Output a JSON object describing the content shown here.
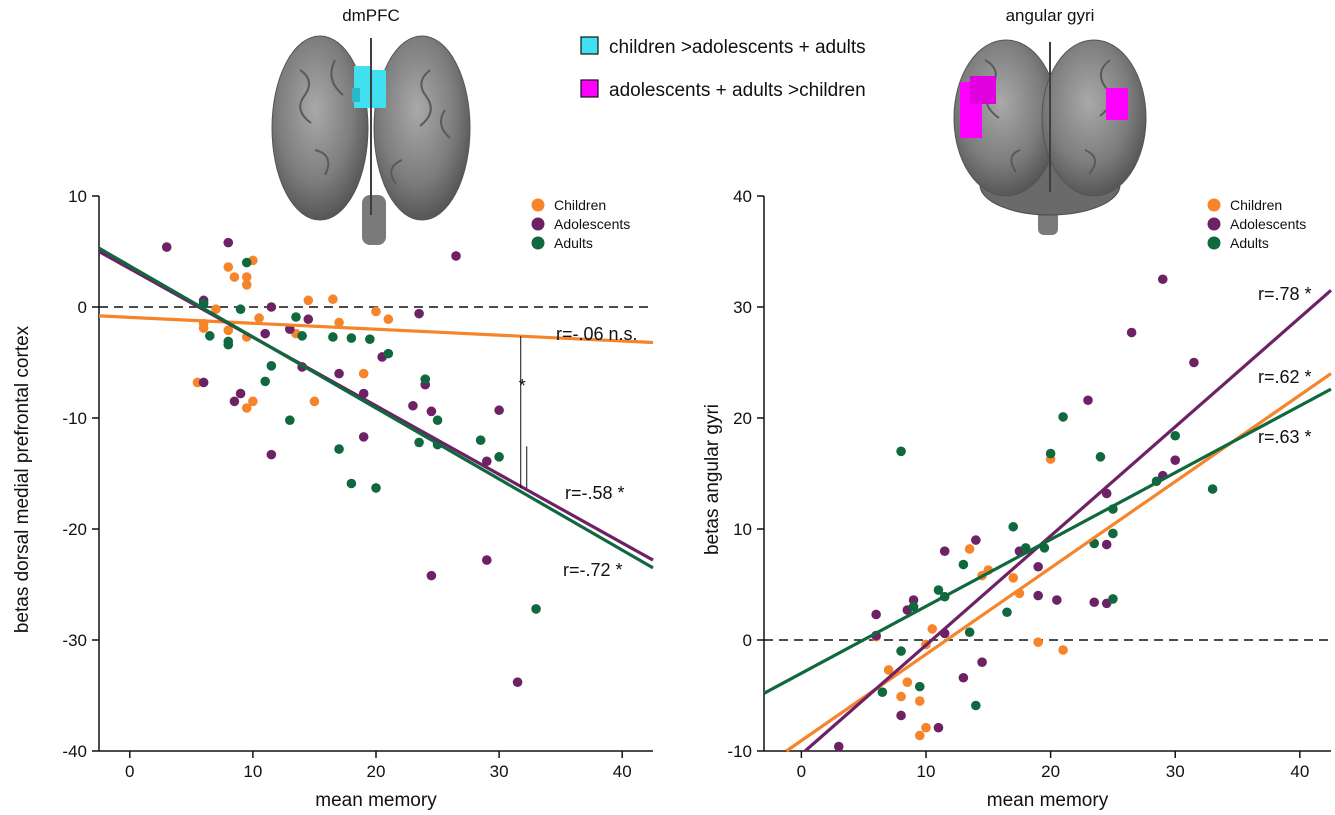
{
  "top_labels": {
    "left_region": "dmPFC",
    "right_region": "angular gyri"
  },
  "contrast_legend": [
    {
      "label": "children >adolescents + adults",
      "color": "#40e0f0"
    },
    {
      "label": "adolescents + adults >children",
      "color": "#ff00ff"
    }
  ],
  "colors": {
    "children": "#f5842a",
    "adolescents": "#6e2266",
    "adults": "#10683e"
  },
  "chart_data": [
    {
      "type": "scatter",
      "title": "dmPFC",
      "xlabel": "mean memory",
      "ylabel": "betas dorsal medial prefrontal cortex",
      "xlim": [
        -2.5,
        42.5
      ],
      "ylim": [
        -40,
        10
      ],
      "xticks": [
        0,
        10,
        20,
        30,
        40
      ],
      "yticks": [
        10,
        0,
        -10,
        -20,
        -30,
        -40
      ],
      "zero_line": "dashed",
      "legend": [
        "Children",
        "Adolescents",
        "Adults"
      ],
      "legend_position": "top-right",
      "series": [
        {
          "name": "Children",
          "color": "#f5842a",
          "points": [
            [
              5.5,
              -6.8
            ],
            [
              6,
              -1.5
            ],
            [
              6,
              -1.9
            ],
            [
              7,
              -0.2
            ],
            [
              8,
              -2.1
            ],
            [
              8,
              3.6
            ],
            [
              8.5,
              2.7
            ],
            [
              9.5,
              2.7
            ],
            [
              9.5,
              -2.7
            ],
            [
              9.5,
              -9.1
            ],
            [
              9.5,
              2
            ],
            [
              10,
              4.2
            ],
            [
              10,
              -8.5
            ],
            [
              10.5,
              -1
            ],
            [
              13.5,
              -2.4
            ],
            [
              14.5,
              0.6
            ],
            [
              15,
              -8.5
            ],
            [
              16.5,
              0.7
            ],
            [
              17,
              -1.4
            ],
            [
              19,
              -6
            ],
            [
              20,
              -0.4
            ],
            [
              21,
              -1.1
            ],
            [
              24.5,
              -9.4
            ]
          ],
          "fit": {
            "start": [
              -2.5,
              -0.8
            ],
            "end": [
              42.5,
              -3.2
            ],
            "label": "r=-.06 n.s."
          }
        },
        {
          "name": "Adolescents",
          "color": "#6e2266",
          "points": [
            [
              3,
              5.4
            ],
            [
              6,
              0.6
            ],
            [
              6,
              -6.8
            ],
            [
              8,
              5.8
            ],
            [
              8.5,
              -8.5
            ],
            [
              9,
              -7.8
            ],
            [
              11,
              -2.4
            ],
            [
              11.5,
              -13.3
            ],
            [
              11.5,
              0
            ],
            [
              13,
              -2
            ],
            [
              14,
              -5.4
            ],
            [
              14.5,
              -1.1
            ],
            [
              17,
              -6
            ],
            [
              19,
              -7.8
            ],
            [
              19,
              -11.7
            ],
            [
              20.5,
              -4.5
            ],
            [
              23,
              -8.9
            ],
            [
              23.5,
              -0.6
            ],
            [
              24,
              -7
            ],
            [
              24.5,
              -9.4
            ],
            [
              24.5,
              -24.2
            ],
            [
              26.5,
              4.6
            ],
            [
              29,
              -13.9
            ],
            [
              29,
              -22.8
            ],
            [
              30,
              -9.3
            ],
            [
              31.5,
              -33.8
            ]
          ],
          "fit": {
            "start": [
              -2.5,
              5
            ],
            "end": [
              42.5,
              -22.8
            ],
            "label": "r=-.58 *"
          }
        },
        {
          "name": "Adults",
          "color": "#10683e",
          "points": [
            [
              6,
              0.3
            ],
            [
              6.5,
              -2.6
            ],
            [
              8,
              -3.1
            ],
            [
              8,
              -3.4
            ],
            [
              9,
              -0.2
            ],
            [
              9.5,
              4
            ],
            [
              11,
              -6.7
            ],
            [
              11.5,
              -5.3
            ],
            [
              13,
              -10.2
            ],
            [
              13.5,
              -0.9
            ],
            [
              14,
              -2.6
            ],
            [
              16.5,
              -2.7
            ],
            [
              17,
              -12.8
            ],
            [
              18,
              -15.9
            ],
            [
              18,
              -2.8
            ],
            [
              19.5,
              -2.9
            ],
            [
              20,
              -16.3
            ],
            [
              21,
              -4.2
            ],
            [
              23.5,
              -12.2
            ],
            [
              24,
              -6.5
            ],
            [
              25,
              -10.2
            ],
            [
              25,
              -12.4
            ],
            [
              28.5,
              -12
            ],
            [
              30,
              -13.5
            ],
            [
              33,
              -27.2
            ]
          ],
          "fit": {
            "start": [
              -2.5,
              5.3
            ],
            "end": [
              42.5,
              -23.5
            ],
            "label": "r=-.72 *"
          }
        }
      ],
      "comparison": {
        "label": "*",
        "x": 32
      }
    },
    {
      "type": "scatter",
      "title": "angular gyri",
      "xlabel": "mean memory",
      "ylabel": "betas angular gyri",
      "xlim": [
        -3,
        42.5
      ],
      "ylim": [
        -10,
        40
      ],
      "xticks": [
        0,
        10,
        20,
        30,
        40
      ],
      "yticks": [
        40,
        30,
        20,
        10,
        0,
        -10
      ],
      "zero_line": "dashed",
      "legend": [
        "Children",
        "Adolescents",
        "Adults"
      ],
      "legend_position": "top-right",
      "series": [
        {
          "name": "Children",
          "color": "#f5842a",
          "points": [
            [
              6,
              0.3
            ],
            [
              7,
              -2.7
            ],
            [
              8,
              -5.1
            ],
            [
              8.5,
              -3.8
            ],
            [
              9.5,
              -5.5
            ],
            [
              9.5,
              -8.6
            ],
            [
              10,
              -7.9
            ],
            [
              10,
              -0.4
            ],
            [
              10.5,
              1
            ],
            [
              13.5,
              8.2
            ],
            [
              14.5,
              5.8
            ],
            [
              15,
              6.3
            ],
            [
              17,
              5.6
            ],
            [
              17.5,
              4.2
            ],
            [
              19,
              -0.2
            ],
            [
              20,
              16.3
            ],
            [
              21,
              -0.9
            ]
          ],
          "fit": {
            "start": [
              -1.2,
              -10
            ],
            "end": [
              42.5,
              24
            ],
            "label": "r=.62 *"
          }
        },
        {
          "name": "Adolescents",
          "color": "#6e2266",
          "points": [
            [
              3,
              -9.6
            ],
            [
              6,
              2.3
            ],
            [
              6,
              0.4
            ],
            [
              8,
              -6.8
            ],
            [
              8.5,
              2.7
            ],
            [
              9,
              3.6
            ],
            [
              11,
              -7.9
            ],
            [
              11.5,
              0.6
            ],
            [
              11.5,
              8
            ],
            [
              13,
              -3.4
            ],
            [
              14,
              9
            ],
            [
              14.5,
              -2
            ],
            [
              17.5,
              8
            ],
            [
              19,
              4
            ],
            [
              19,
              6.6
            ],
            [
              20.5,
              3.6
            ],
            [
              23,
              21.6
            ],
            [
              23.5,
              3.4
            ],
            [
              24.5,
              13.2
            ],
            [
              24.5,
              8.6
            ],
            [
              24.5,
              3.3
            ],
            [
              26.5,
              27.7
            ],
            [
              29,
              14.8
            ],
            [
              29,
              32.5
            ],
            [
              30,
              16.2
            ],
            [
              31.5,
              25
            ]
          ],
          "fit": {
            "start": [
              0.3,
              -10
            ],
            "end": [
              42.5,
              31.5
            ],
            "label": "r=.78 *"
          }
        },
        {
          "name": "Adults",
          "color": "#10683e",
          "points": [
            [
              6.5,
              -4.7
            ],
            [
              8,
              17
            ],
            [
              8,
              -1
            ],
            [
              9,
              3
            ],
            [
              9.5,
              -4.2
            ],
            [
              11,
              4.5
            ],
            [
              11.5,
              3.9
            ],
            [
              13,
              6.8
            ],
            [
              13.5,
              0.7
            ],
            [
              14,
              -5.9
            ],
            [
              16.5,
              2.5
            ],
            [
              17,
              10.2
            ],
            [
              18,
              8.3
            ],
            [
              19.5,
              8.3
            ],
            [
              20,
              16.8
            ],
            [
              21,
              20.1
            ],
            [
              23.5,
              8.7
            ],
            [
              24,
              16.5
            ],
            [
              25,
              11.8
            ],
            [
              25,
              9.6
            ],
            [
              25,
              3.7
            ],
            [
              28.5,
              14.3
            ],
            [
              30,
              18.4
            ],
            [
              33,
              13.6
            ]
          ],
          "fit": {
            "start": [
              -3,
              -4.8
            ],
            "end": [
              42.5,
              22.6
            ],
            "label": "r=.63 *"
          }
        }
      ]
    }
  ]
}
